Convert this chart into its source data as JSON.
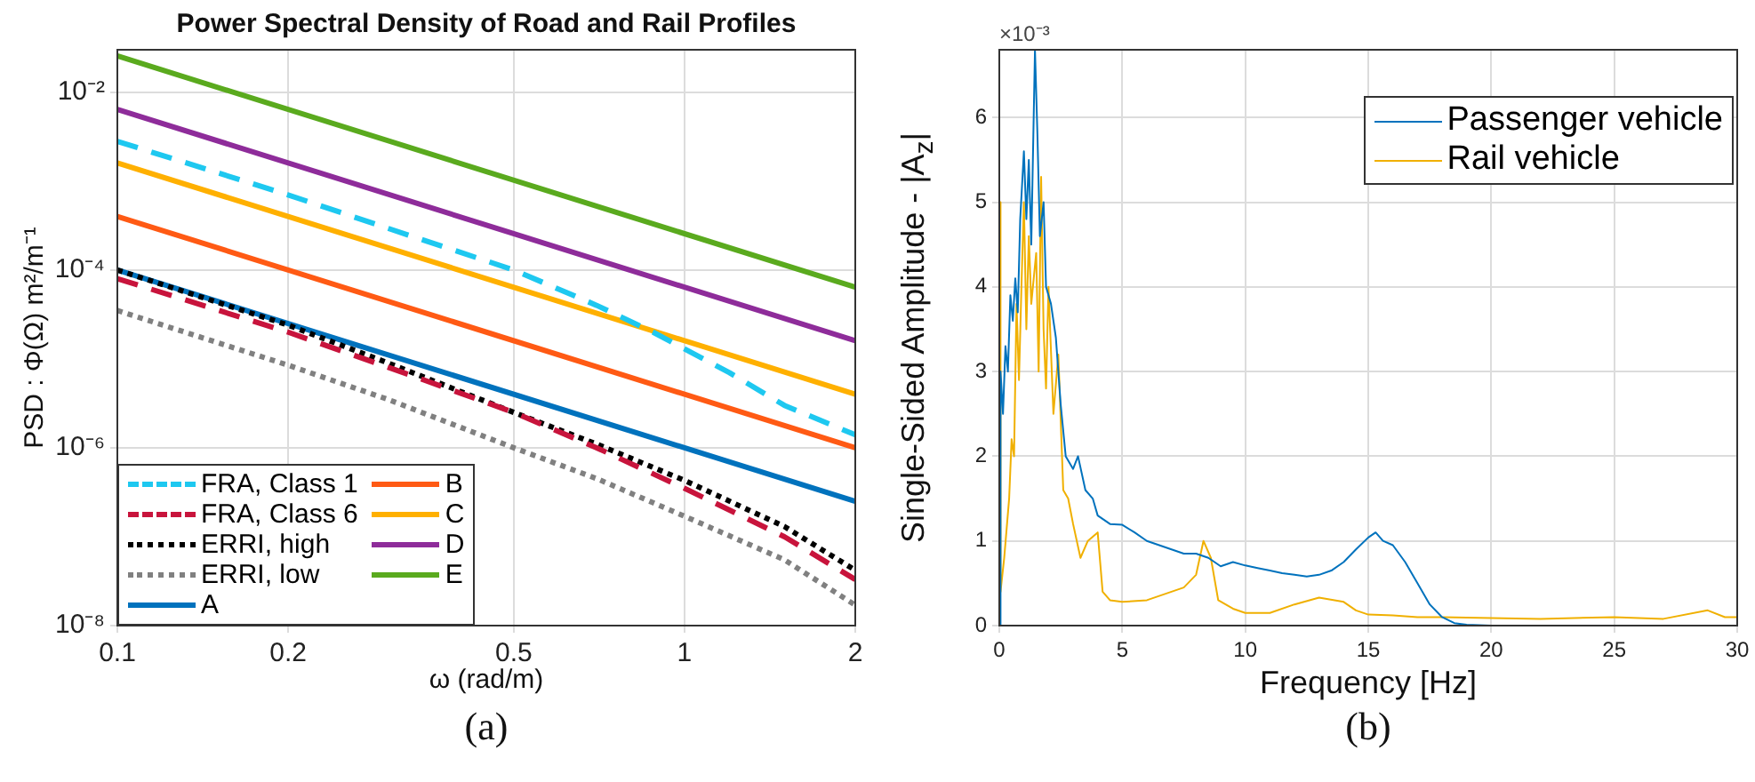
{
  "chart_data": [
    {
      "type": "line",
      "title": "Power Spectral Density of Road and Rail Profiles",
      "xlabel": "ω (rad/m)",
      "ylabel": "PSD : Φ(Ω) m²/m⁻¹",
      "log": "xy",
      "grid": true,
      "legend": "bottom left",
      "xlim": [
        0.1,
        2
      ],
      "xticks": [
        0.1,
        0.2,
        0.5,
        1,
        2
      ],
      "ylim": [
        1e-08,
        0.03
      ],
      "yticks": [
        {
          "value": 1e-08,
          "label": "10⁻⁸"
        },
        {
          "value": 1e-06,
          "label": "10⁻⁶"
        },
        {
          "value": 0.0001,
          "label": "10⁻⁴"
        },
        {
          "value": 0.01,
          "label": "10⁻²"
        }
      ],
      "annotations": [
        "(a)"
      ],
      "series": [
        {
          "name": "FRA, Class 1",
          "color": "#1ec8f0",
          "line_style": "dashed",
          "x": [
            0.1,
            0.2,
            0.33,
            0.5,
            0.7,
            0.88,
            1.2,
            1.5,
            2
          ],
          "values": [
            0.0028,
            0.0007,
            0.00024,
            0.0001,
            4e-05,
            2e-05,
            7e-06,
            3e-06,
            1.4e-06
          ]
        },
        {
          "name": "FRA, Class 6",
          "color": "#c8143c",
          "line_style": "dashed",
          "x": [
            0.1,
            0.2,
            0.33,
            0.5,
            0.7,
            1,
            1.5,
            2
          ],
          "values": [
            8e-05,
            2e-05,
            6.5e-06,
            2.5e-06,
            1e-06,
            3.5e-07,
            1e-07,
            3.3e-08
          ]
        },
        {
          "name": "ERRI, high",
          "color": "#000000",
          "line_style": "dotted",
          "x": [
            0.1,
            0.2,
            0.3,
            0.5,
            0.7,
            1,
            1.5,
            2
          ],
          "values": [
            0.0001,
            2.4e-05,
            9e-06,
            2.5e-06,
            1.1e-06,
            4.3e-07,
            1.3e-07,
            4.2e-08
          ]
        },
        {
          "name": "ERRI, low",
          "color": "#808080",
          "line_style": "dotted",
          "x": [
            0.1,
            0.2,
            0.3,
            0.5,
            0.7,
            1,
            1.5,
            2
          ],
          "values": [
            3.5e-05,
            8.5e-06,
            3.5e-06,
            1e-06,
            4.5e-07,
            1.7e-07,
            5.5e-08,
            1.7e-08
          ]
        },
        {
          "name": "A",
          "color": "#0072bd",
          "line_style": "solid",
          "x": [
            0.1,
            2
          ],
          "values": [
            0.0001,
            2.5e-07
          ]
        },
        {
          "name": "B",
          "color": "#ff5a14",
          "line_style": "solid",
          "x": [
            0.1,
            2
          ],
          "values": [
            0.0004,
            1e-06
          ]
        },
        {
          "name": "C",
          "color": "#ffb000",
          "line_style": "solid",
          "x": [
            0.1,
            2
          ],
          "values": [
            0.0016,
            4e-06
          ]
        },
        {
          "name": "D",
          "color": "#8e2c9a",
          "line_style": "solid",
          "x": [
            0.1,
            2
          ],
          "values": [
            0.0064,
            1.6e-05
          ]
        },
        {
          "name": "E",
          "color": "#5aaa1e",
          "line_style": "solid",
          "x": [
            0.1,
            2
          ],
          "values": [
            0.0256,
            6.4e-05
          ]
        }
      ]
    },
    {
      "type": "line",
      "xlabel": "Frequency [Hz]",
      "ylabel": "Single-Sided Amplitude - |A$_{z}$|",
      "grid": true,
      "legend": "top right",
      "xlim": [
        0,
        30
      ],
      "xticks": [
        0,
        5,
        10,
        15,
        20,
        25,
        30
      ],
      "ylim": [
        0,
        6.8
      ],
      "yticks": [
        0,
        1,
        2,
        3,
        4,
        5,
        6
      ],
      "annotations": [
        "×10⁻³",
        "(b)"
      ],
      "series": [
        {
          "name": "Passenger vehicle",
          "color": "#0072bd",
          "line_style": "solid",
          "x": [
            0,
            0.05,
            0.15,
            0.25,
            0.35,
            0.45,
            0.55,
            0.65,
            0.75,
            0.85,
            1.0,
            1.1,
            1.2,
            1.3,
            1.45,
            1.55,
            1.65,
            1.8,
            1.9,
            2.1,
            2.3,
            2.5,
            2.7,
            3.0,
            3.2,
            3.5,
            3.8,
            4.0,
            4.5,
            5.0,
            5.5,
            6.0,
            6.5,
            7.0,
            7.5,
            8.0,
            8.5,
            9.0,
            9.5,
            10,
            10.5,
            11,
            11.5,
            12,
            12.5,
            13,
            13.5,
            14,
            14.5,
            15,
            15.3,
            15.6,
            16,
            16.5,
            17,
            17.5,
            18,
            18.5,
            19,
            20
          ],
          "values": [
            0,
            3.0,
            2.5,
            3.3,
            3.0,
            3.9,
            3.6,
            4.1,
            3.7,
            4.8,
            5.6,
            4.8,
            5.5,
            4.5,
            6.8,
            5.8,
            4.6,
            5.0,
            4.0,
            3.8,
            3.4,
            2.6,
            2.0,
            1.85,
            2.0,
            1.6,
            1.5,
            1.3,
            1.2,
            1.19,
            1.1,
            1.0,
            0.95,
            0.9,
            0.85,
            0.85,
            0.8,
            0.7,
            0.75,
            0.71,
            0.68,
            0.65,
            0.62,
            0.6,
            0.58,
            0.6,
            0.65,
            0.75,
            0.9,
            1.04,
            1.1,
            1.0,
            0.95,
            0.75,
            0.5,
            0.25,
            0.1,
            0.03,
            0.01,
            0
          ]
        },
        {
          "name": "Rail vehicle",
          "color": "#f0b000",
          "line_style": "solid",
          "x": [
            0,
            0.05,
            0.2,
            0.4,
            0.5,
            0.6,
            0.7,
            0.8,
            0.9,
            1.0,
            1.1,
            1.2,
            1.3,
            1.5,
            1.6,
            1.7,
            1.8,
            1.9,
            2.0,
            2.2,
            2.4,
            2.6,
            2.8,
            3.0,
            3.3,
            3.6,
            4.0,
            4.2,
            4.5,
            5.0,
            6.0,
            7.0,
            7.5,
            8.0,
            8.3,
            8.6,
            8.9,
            9.5,
            10,
            11,
            12,
            13,
            14,
            14.5,
            15,
            16,
            17,
            18,
            20,
            22,
            25,
            27,
            28.8,
            29.5,
            30
          ],
          "values": [
            5.0,
            0.4,
            0.8,
            1.5,
            2.2,
            2.0,
            3.8,
            2.9,
            4.0,
            5.0,
            3.5,
            4.6,
            3.8,
            4.4,
            3.0,
            5.3,
            3.5,
            2.8,
            4.0,
            2.5,
            3.2,
            1.6,
            1.5,
            1.2,
            0.8,
            1.0,
            1.1,
            0.4,
            0.3,
            0.28,
            0.3,
            0.4,
            0.45,
            0.6,
            1.0,
            0.8,
            0.3,
            0.2,
            0.15,
            0.15,
            0.25,
            0.33,
            0.28,
            0.18,
            0.13,
            0.12,
            0.1,
            0.1,
            0.09,
            0.08,
            0.1,
            0.08,
            0.18,
            0.1,
            0.1
          ]
        }
      ]
    }
  ]
}
